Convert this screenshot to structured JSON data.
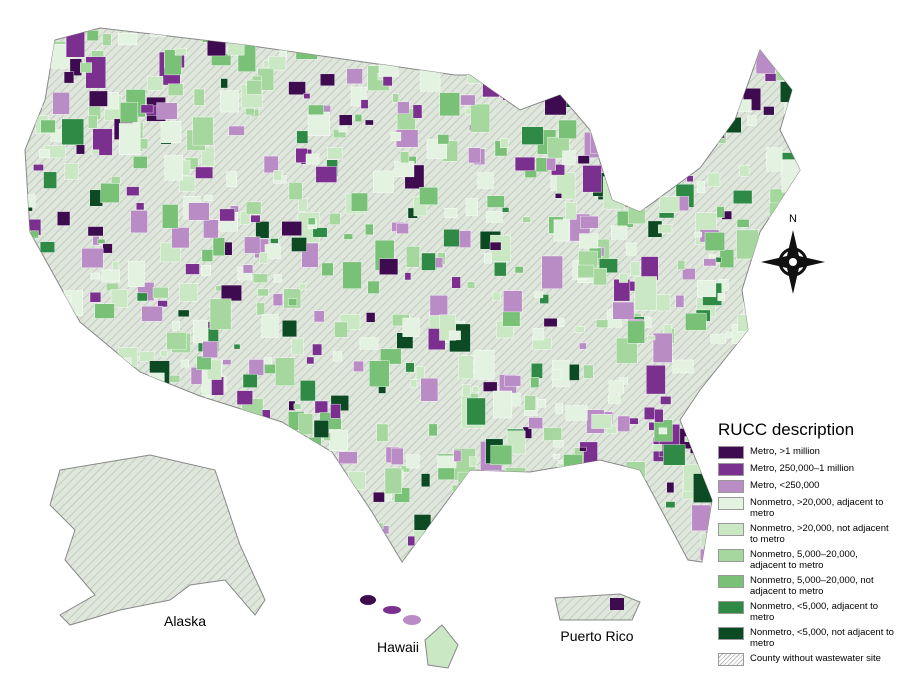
{
  "legend": {
    "title": "RUCC description",
    "items": [
      {
        "label": "Metro, >1 million",
        "color": "#3f0b50"
      },
      {
        "label": "Metro, 250,000–1 million",
        "color": "#7b2f8e"
      },
      {
        "label": "Metro, <250,000",
        "color": "#b98cc6"
      },
      {
        "label": "Nonmetro, >20,000, adjacent to metro",
        "color": "#e4f3e1"
      },
      {
        "label": "Nonmetro, >20,000, not adjacent to metro",
        "color": "#cbe8c5"
      },
      {
        "label": "Nonmetro, 5,000–20,000, adjacent to metro",
        "color": "#a6d79e"
      },
      {
        "label": "Nonmetro, 5,000–20,000, not adjacent to metro",
        "color": "#78c177"
      },
      {
        "label": "Nonmetro, <5,000, adjacent to metro",
        "color": "#2e8a45"
      },
      {
        "label": "Nonmetro, <5,000, not adjacent to metro",
        "color": "#0b4a22"
      },
      {
        "label": "County without wastewater site",
        "color": "hatch"
      }
    ]
  },
  "labels": {
    "alaska": "Alaska",
    "hawaii": "Hawaii",
    "puerto_rico": "Puerto Rico",
    "compass": "N"
  }
}
